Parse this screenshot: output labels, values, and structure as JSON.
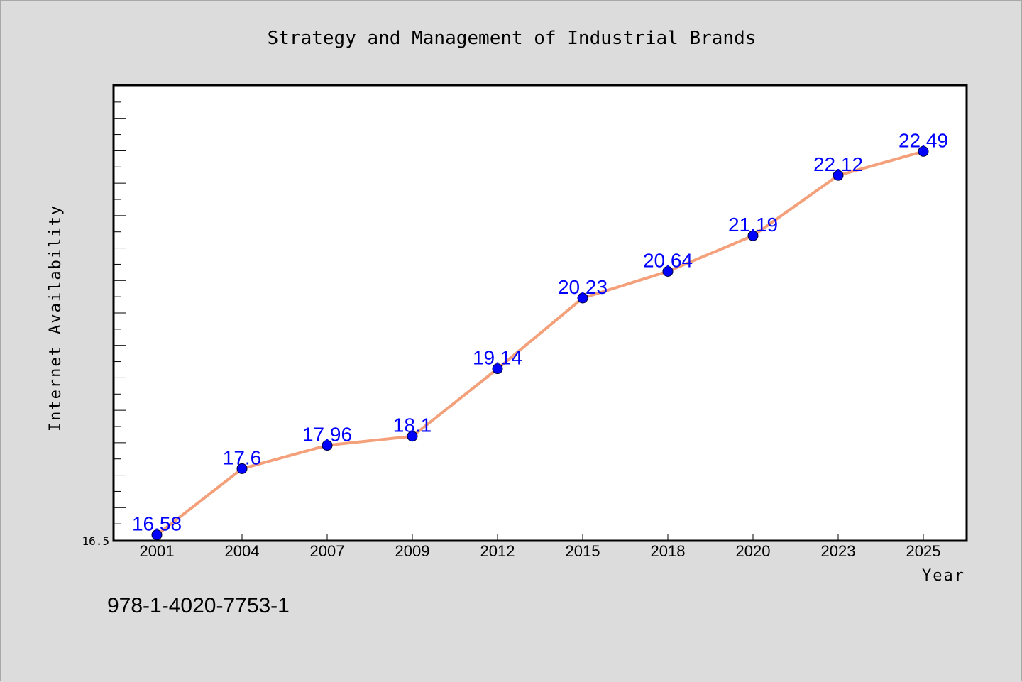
{
  "chart_data": {
    "type": "line",
    "title": "Strategy and Management of Industrial Brands",
    "xlabel": "Year",
    "ylabel": "Internet Availability",
    "categories": [
      "2001",
      "2004",
      "2007",
      "2009",
      "2012",
      "2015",
      "2018",
      "2020",
      "2023",
      "2025"
    ],
    "series": [
      {
        "values": [
          16.58,
          17.6,
          17.96,
          18.1,
          19.14,
          20.23,
          20.64,
          21.19,
          22.12,
          22.49
        ]
      }
    ],
    "data_labels": [
      "16.58",
      "17.6",
      "17.96",
      "18.1",
      "19.14",
      "20.23",
      "20.64",
      "21.19",
      "22.12",
      "22.49"
    ],
    "ylim": [
      16.5,
      23.5
    ],
    "y_min_label": "16.5",
    "grid": false,
    "line_color": "#f4a07a",
    "marker_color": "#0000ff",
    "label_color": "#0000ff",
    "background_color": "#dcdcdc",
    "plot_background": "#ffffff"
  },
  "footer_text": "978-1-4020-7753-1"
}
